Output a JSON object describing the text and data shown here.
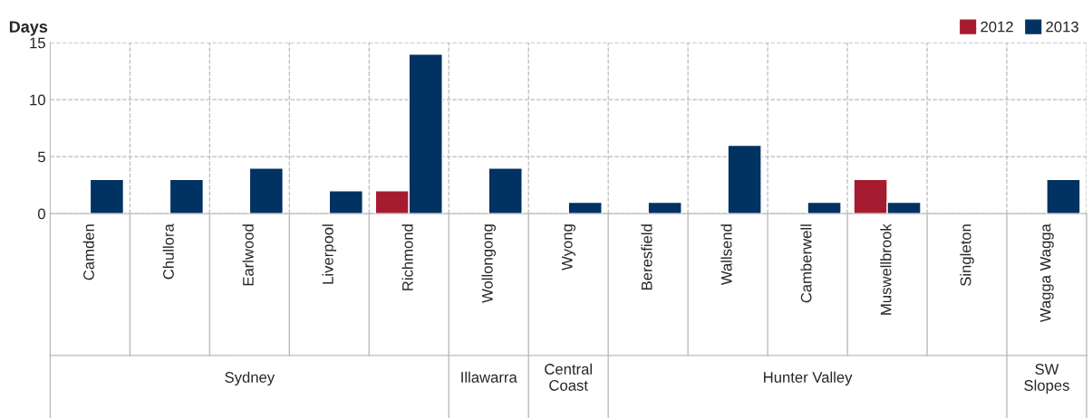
{
  "chart_data": {
    "type": "bar",
    "ylabel": "Days",
    "categories": [
      "Camden",
      "Chullora",
      "Earlwood",
      "Liverpool",
      "Richmond",
      "Wollongong",
      "Wyong",
      "Beresfield",
      "Wallsend",
      "Camberwell",
      "Muswellbrook",
      "Singleton",
      "Wagga Wagga"
    ],
    "series": [
      {
        "name": "2012",
        "color": "#a51c30",
        "values": [
          null,
          null,
          null,
          null,
          2,
          null,
          null,
          null,
          null,
          null,
          3,
          null,
          null
        ]
      },
      {
        "name": "2013",
        "color": "#003262",
        "values": [
          3,
          3,
          4,
          2,
          14,
          4,
          1,
          1,
          6,
          1,
          1,
          null,
          3
        ]
      }
    ],
    "ylim": [
      0,
      15
    ],
    "yticks": [
      0,
      5,
      10,
      15
    ],
    "grid": true,
    "legend": "top right",
    "annotations": [
      "Sydney",
      "Illawarra",
      "Central\nCoast",
      "Hunter Valley",
      "SW\nSlopes"
    ]
  }
}
